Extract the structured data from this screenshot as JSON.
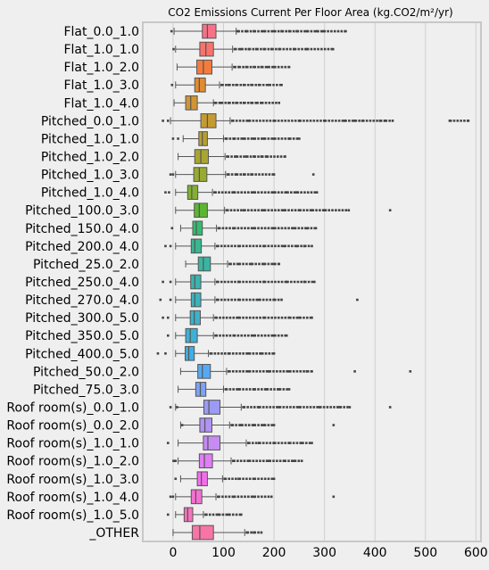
{
  "chart_data": {
    "type": "boxplot",
    "title": "CO2 Emissions Current Per Floor Area (kg.CO2/m²/yr)",
    "xlabel": "",
    "ylabel": "",
    "orientation": "horizontal",
    "xlim": [
      -60,
      610
    ],
    "xticks": [
      0,
      100,
      200,
      300,
      400,
      500,
      600
    ],
    "grid": "vertical",
    "legend": "none",
    "categories": [
      "Flat_0.0_1.0",
      "Flat_1.0_1.0",
      "Flat_1.0_2.0",
      "Flat_1.0_3.0",
      "Flat_1.0_4.0",
      "Pitched_0.0_1.0",
      "Pitched_1.0_1.0",
      "Pitched_1.0_2.0",
      "Pitched_1.0_3.0",
      "Pitched_1.0_4.0",
      "Pitched_100.0_3.0",
      "Pitched_150.0_4.0",
      "Pitched_200.0_4.0",
      "Pitched_25.0_2.0",
      "Pitched_250.0_4.0",
      "Pitched_270.0_4.0",
      "Pitched_300.0_5.0",
      "Pitched_350.0_5.0",
      "Pitched_400.0_5.0",
      "Pitched_50.0_2.0",
      "Pitched_75.0_3.0",
      "Roof room(s)_0.0_1.0",
      "Roof room(s)_0.0_2.0",
      "Roof room(s)_1.0_1.0",
      "Roof room(s)_1.0_2.0",
      "Roof room(s)_1.0_3.0",
      "Roof room(s)_1.0_4.0",
      "Roof room(s)_1.0_5.0",
      "_OTHER"
    ],
    "boxes": [
      {
        "whislo": 2,
        "q1": 58,
        "med": 68,
        "q3": 85,
        "whishi": 125,
        "outliers": [
          -3,
          128,
          145,
          160,
          180,
          200,
          215,
          230,
          245,
          265,
          285,
          298,
          342
        ]
      },
      {
        "whislo": 5,
        "q1": 53,
        "med": 65,
        "q3": 80,
        "whishi": 118,
        "outliers": [
          1,
          122,
          135,
          150,
          165,
          180,
          195,
          210,
          240,
          265,
          317
        ]
      },
      {
        "whislo": 8,
        "q1": 47,
        "med": 60,
        "q3": 77,
        "whishi": 117,
        "outliers": [
          121,
          130,
          145,
          160,
          175,
          188,
          200,
          230
        ]
      },
      {
        "whislo": 5,
        "q1": 43,
        "med": 52,
        "q3": 64,
        "whishi": 92,
        "outliers": [
          -2,
          96,
          110,
          125,
          140,
          155,
          170,
          190,
          215
        ]
      },
      {
        "whislo": 2,
        "q1": 25,
        "med": 35,
        "q3": 48,
        "whishi": 80,
        "outliers": [
          83,
          95,
          110,
          125,
          140,
          155,
          165,
          175,
          210
        ]
      },
      {
        "whislo": -5,
        "q1": 55,
        "med": 68,
        "q3": 85,
        "whishi": 113,
        "outliers": [
          -20,
          -10,
          117,
          150,
          200,
          250,
          300,
          340,
          360,
          375,
          410,
          420,
          435,
          548,
          585
        ]
      },
      {
        "whislo": 20,
        "q1": 51,
        "med": 58,
        "q3": 68,
        "whishi": 100,
        "outliers": [
          0,
          10,
          104,
          120,
          140,
          160,
          180,
          200,
          230,
          250
        ]
      },
      {
        "whislo": 10,
        "q1": 43,
        "med": 55,
        "q3": 70,
        "whishi": 103,
        "outliers": [
          107,
          125,
          145,
          160,
          175,
          185,
          222
        ]
      },
      {
        "whislo": 5,
        "q1": 41,
        "med": 52,
        "q3": 67,
        "whishi": 104,
        "outliers": [
          -5,
          0,
          108,
          125,
          140,
          155,
          200,
          278
        ]
      },
      {
        "whislo": 5,
        "q1": 29,
        "med": 37,
        "q3": 49,
        "whishi": 78,
        "outliers": [
          -15,
          -8,
          82,
          120,
          160,
          200,
          225,
          245,
          285
        ]
      },
      {
        "whislo": 5,
        "q1": 42,
        "med": 52,
        "q3": 68,
        "whishi": 102,
        "outliers": [
          106,
          140,
          180,
          220,
          250,
          275,
          300,
          348,
          430
        ]
      },
      {
        "whislo": 15,
        "q1": 39,
        "med": 46,
        "q3": 58,
        "whishi": 86,
        "outliers": [
          -2,
          90,
          120,
          160,
          200,
          240,
          265,
          283
        ]
      },
      {
        "whislo": 5,
        "q1": 36,
        "med": 43,
        "q3": 56,
        "whishi": 83,
        "outliers": [
          -15,
          -5,
          87,
          130,
          180,
          220,
          245,
          260,
          275
        ]
      },
      {
        "whislo": 25,
        "q1": 50,
        "med": 60,
        "q3": 74,
        "whishi": 108,
        "outliers": [
          112,
          130,
          155,
          180,
          200,
          210
        ]
      },
      {
        "whislo": 5,
        "q1": 35,
        "med": 43,
        "q3": 55,
        "whishi": 83,
        "outliers": [
          -20,
          -5,
          87,
          130,
          180,
          225,
          260,
          280
        ]
      },
      {
        "whislo": 5,
        "q1": 36,
        "med": 43,
        "q3": 55,
        "whishi": 83,
        "outliers": [
          -25,
          -5,
          87,
          130,
          170,
          200,
          215,
          365
        ]
      },
      {
        "whislo": 5,
        "q1": 34,
        "med": 42,
        "q3": 54,
        "whishi": 80,
        "outliers": [
          -20,
          -10,
          84,
          130,
          180,
          230,
          250,
          275
        ]
      },
      {
        "whislo": 5,
        "q1": 25,
        "med": 34,
        "q3": 48,
        "whishi": 80,
        "outliers": [
          -10,
          84,
          120,
          160,
          200,
          225
        ]
      },
      {
        "whislo": 5,
        "q1": 24,
        "med": 31,
        "q3": 42,
        "whishi": 70,
        "outliers": [
          -30,
          -15,
          74,
          110,
          150,
          175,
          200
        ]
      },
      {
        "whislo": 15,
        "q1": 49,
        "med": 58,
        "q3": 74,
        "whishi": 106,
        "outliers": [
          110,
          150,
          190,
          230,
          265,
          275,
          360,
          470
        ]
      },
      {
        "whislo": 10,
        "q1": 45,
        "med": 54,
        "q3": 65,
        "whishi": 100,
        "outliers": [
          104,
          130,
          160,
          185,
          210,
          230
        ]
      },
      {
        "whislo": 5,
        "q1": 61,
        "med": 71,
        "q3": 93,
        "whishi": 135,
        "outliers": [
          -5,
          8,
          139,
          170,
          210,
          250,
          290,
          330,
          350,
          430
        ]
      },
      {
        "whislo": 15,
        "q1": 53,
        "med": 63,
        "q3": 77,
        "whishi": 112,
        "outliers": [
          18,
          116,
          135,
          160,
          180,
          200,
          318
        ]
      },
      {
        "whislo": 10,
        "q1": 60,
        "med": 69,
        "q3": 93,
        "whishi": 145,
        "outliers": [
          -10,
          149,
          170,
          200,
          230,
          255,
          275
        ]
      },
      {
        "whislo": 10,
        "q1": 52,
        "med": 62,
        "q3": 78,
        "whishi": 115,
        "outliers": [
          1,
          5,
          119,
          150,
          190,
          220,
          240,
          255
        ]
      },
      {
        "whislo": 15,
        "q1": 48,
        "med": 56,
        "q3": 68,
        "whishi": 98,
        "outliers": [
          5,
          102,
          130,
          160,
          200
        ]
      },
      {
        "whislo": 5,
        "q1": 36,
        "med": 45,
        "q3": 57,
        "whishi": 85,
        "outliers": [
          -5,
          0,
          89,
          120,
          160,
          195,
          318
        ]
      },
      {
        "whislo": 5,
        "q1": 22,
        "med": 29,
        "q3": 39,
        "whishi": 60,
        "outliers": [
          -10,
          64,
          90,
          110,
          135
        ]
      },
      {
        "whislo": 0,
        "q1": 38,
        "med": 53,
        "q3": 80,
        "whishi": 142,
        "outliers": [
          146,
          160,
          175
        ]
      }
    ],
    "colors": [
      "#f77189",
      "#f7736c",
      "#f47b3d",
      "#e28b31",
      "#d29532",
      "#c39b32",
      "#b6a031",
      "#a8a531",
      "#98aa31",
      "#83b032",
      "#5db632",
      "#36ba70",
      "#38b791",
      "#39b5a3",
      "#3ab4af",
      "#3bb3bb",
      "#3cb2c7",
      "#3db0d3",
      "#3faee3",
      "#56a9f4",
      "#7ea2f4",
      "#9b9af4",
      "#b193f4",
      "#c78bf4",
      "#e07ff4",
      "#f26eea",
      "#f570d2",
      "#f573bc",
      "#f675a6"
    ]
  }
}
